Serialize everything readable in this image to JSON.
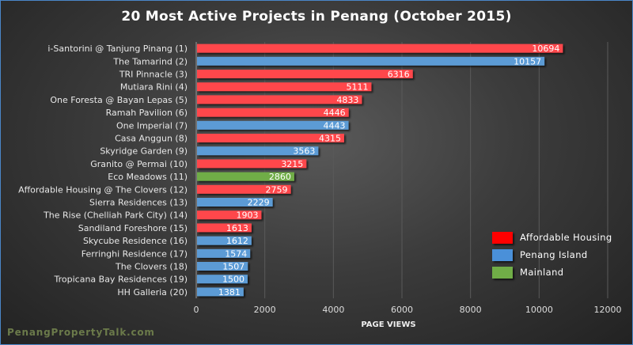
{
  "chart_data": {
    "type": "bar",
    "orientation": "horizontal",
    "title": "20 Most Active Projects in Penang (October 2015)",
    "xlabel": "PAGE VIEWS",
    "ylabel": "",
    "xlim": [
      0,
      12000
    ],
    "xticks": [
      0,
      2000,
      4000,
      6000,
      8000,
      10000,
      12000
    ],
    "grid": "vertical",
    "legend_position": "bottom-right",
    "categories": [
      "i-Santorini @ Tanjung Pinang (1)",
      "The Tamarind (2)",
      "TRI Pinnacle (3)",
      "Mutiara Rini (4)",
      "One Foresta @ Bayan Lepas (5)",
      "Ramah Pavilion (6)",
      "One Imperial (7)",
      "Casa Anggun (8)",
      "Skyridge Garden (9)",
      "Granito @ Permai (10)",
      "Eco Meadows (11)",
      "Affordable Housing @ The Clovers (12)",
      "Sierra Residences (13)",
      "The Rise (Chelliah Park City) (14)",
      "Sandiland Foreshore (15)",
      "Skycube Residence (16)",
      "Ferringhi Residence (17)",
      "The Clovers (18)",
      "Tropicana Bay Residences (19)",
      "HH Galleria (20)"
    ],
    "values": [
      10694,
      10157,
      6316,
      5111,
      4833,
      4446,
      4443,
      4315,
      3563,
      3215,
      2860,
      2759,
      2229,
      1903,
      1613,
      1612,
      1574,
      1507,
      1500,
      1381
    ],
    "groups": [
      "Affordable Housing",
      "Penang Island",
      "Affordable Housing",
      "Affordable Housing",
      "Affordable Housing",
      "Affordable Housing",
      "Penang Island",
      "Affordable Housing",
      "Penang Island",
      "Affordable Housing",
      "Mainland",
      "Affordable Housing",
      "Penang Island",
      "Affordable Housing",
      "Affordable Housing",
      "Penang Island",
      "Penang Island",
      "Penang Island",
      "Penang Island",
      "Penang Island"
    ],
    "legend": [
      {
        "name": "Affordable Housing",
        "color": "#ff0000",
        "bar_color": "#ff474c"
      },
      {
        "name": "Penang Island",
        "color": "#4a90d9",
        "bar_color": "#5b9bd5"
      },
      {
        "name": "Mainland",
        "color": "#70ad47",
        "bar_color": "#70ad47"
      }
    ]
  },
  "watermark": "PenangPropertyTalk.com"
}
